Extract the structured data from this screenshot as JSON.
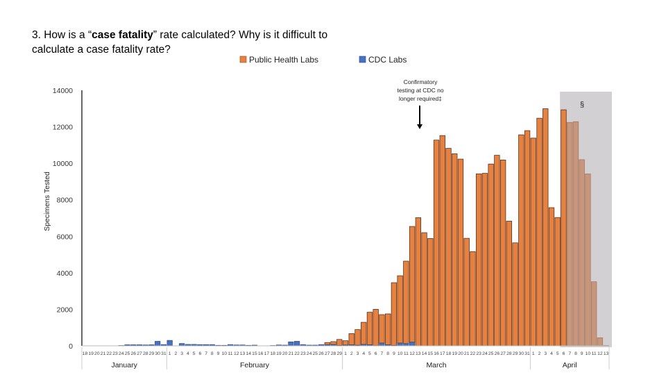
{
  "question": {
    "prefix": "3.  How is a “",
    "bold": "case fatality",
    "suffix": "” rate calculated?  Why is it difficult to",
    "line2": "calculate a case fatality rate?"
  },
  "chart_data": {
    "type": "bar",
    "stacked": true,
    "title": "",
    "xlabel": "",
    "ylabel": "Specimens Tested",
    "ylim": [
      0,
      14000
    ],
    "yticks": [
      "0",
      "2000",
      "4000",
      "6000",
      "8000",
      "10000",
      "12000",
      "14000"
    ],
    "grid": false,
    "legend_position": "top",
    "months": [
      "January",
      "February",
      "March",
      "April"
    ],
    "categories": [
      "18",
      "19",
      "20",
      "21",
      "22",
      "23",
      "24",
      "25",
      "26",
      "27",
      "28",
      "29",
      "30",
      "31",
      "1",
      "2",
      "3",
      "4",
      "5",
      "6",
      "7",
      "8",
      "9",
      "10",
      "11",
      "12",
      "13",
      "14",
      "15",
      "16",
      "17",
      "18",
      "19",
      "20",
      "21",
      "22",
      "23",
      "24",
      "25",
      "26",
      "27",
      "28",
      "29",
      "1",
      "2",
      "3",
      "4",
      "5",
      "6",
      "7",
      "8",
      "9",
      "10",
      "11",
      "12",
      "13",
      "14",
      "15",
      "16",
      "17",
      "18",
      "19",
      "20",
      "21",
      "22",
      "23",
      "24",
      "25",
      "26",
      "27",
      "28",
      "29",
      "30",
      "31",
      "1",
      "2",
      "3",
      "4",
      "5",
      "6",
      "7",
      "8",
      "9",
      "10",
      "11",
      "12",
      "13"
    ],
    "series": [
      {
        "name": "CDC Labs",
        "color": "#4472C4",
        "values": [
          0,
          0,
          0,
          0,
          0,
          0,
          20,
          60,
          60,
          60,
          50,
          60,
          250,
          70,
          300,
          0,
          130,
          80,
          80,
          70,
          70,
          70,
          30,
          30,
          70,
          50,
          50,
          30,
          40,
          0,
          0,
          20,
          50,
          40,
          220,
          250,
          70,
          40,
          40,
          70,
          60,
          70,
          20,
          40,
          50,
          30,
          80,
          60,
          10,
          150,
          60,
          20,
          150,
          120,
          200,
          0,
          0,
          0,
          0,
          0,
          0,
          0,
          0,
          0,
          0,
          0,
          0,
          0,
          0,
          0,
          0,
          0,
          0,
          0,
          0,
          0,
          0,
          0,
          0,
          0,
          0,
          0,
          0,
          0,
          0,
          0,
          0
        ]
      },
      {
        "name": "Public Health Labs",
        "color": "#E8803E",
        "values": [
          0,
          0,
          0,
          0,
          0,
          0,
          0,
          0,
          0,
          0,
          0,
          0,
          0,
          0,
          0,
          0,
          0,
          0,
          0,
          0,
          0,
          0,
          0,
          0,
          0,
          0,
          0,
          0,
          0,
          0,
          0,
          0,
          0,
          0,
          0,
          0,
          0,
          0,
          0,
          0,
          120,
          160,
          330,
          240,
          620,
          860,
          1210,
          1780,
          1990,
          1560,
          1690,
          3440,
          3690,
          4520,
          6340,
          7020,
          6200,
          5880,
          11270,
          11520,
          10820,
          10520,
          10230,
          5890,
          5160,
          9420,
          9450,
          9960,
          10440,
          10180,
          6830,
          5640,
          11560,
          11790,
          11380,
          12470,
          12990,
          7570,
          7030,
          12930,
          12240,
          12280,
          10200,
          9420,
          3510,
          440,
          20
        ]
      }
    ],
    "shaded_region": {
      "from": "April 6",
      "to": "April 13",
      "label": "§"
    },
    "annotation": {
      "text": [
        "Confirmatory",
        "testing at CDC no",
        "longer required‡"
      ],
      "at": "March 13"
    }
  }
}
